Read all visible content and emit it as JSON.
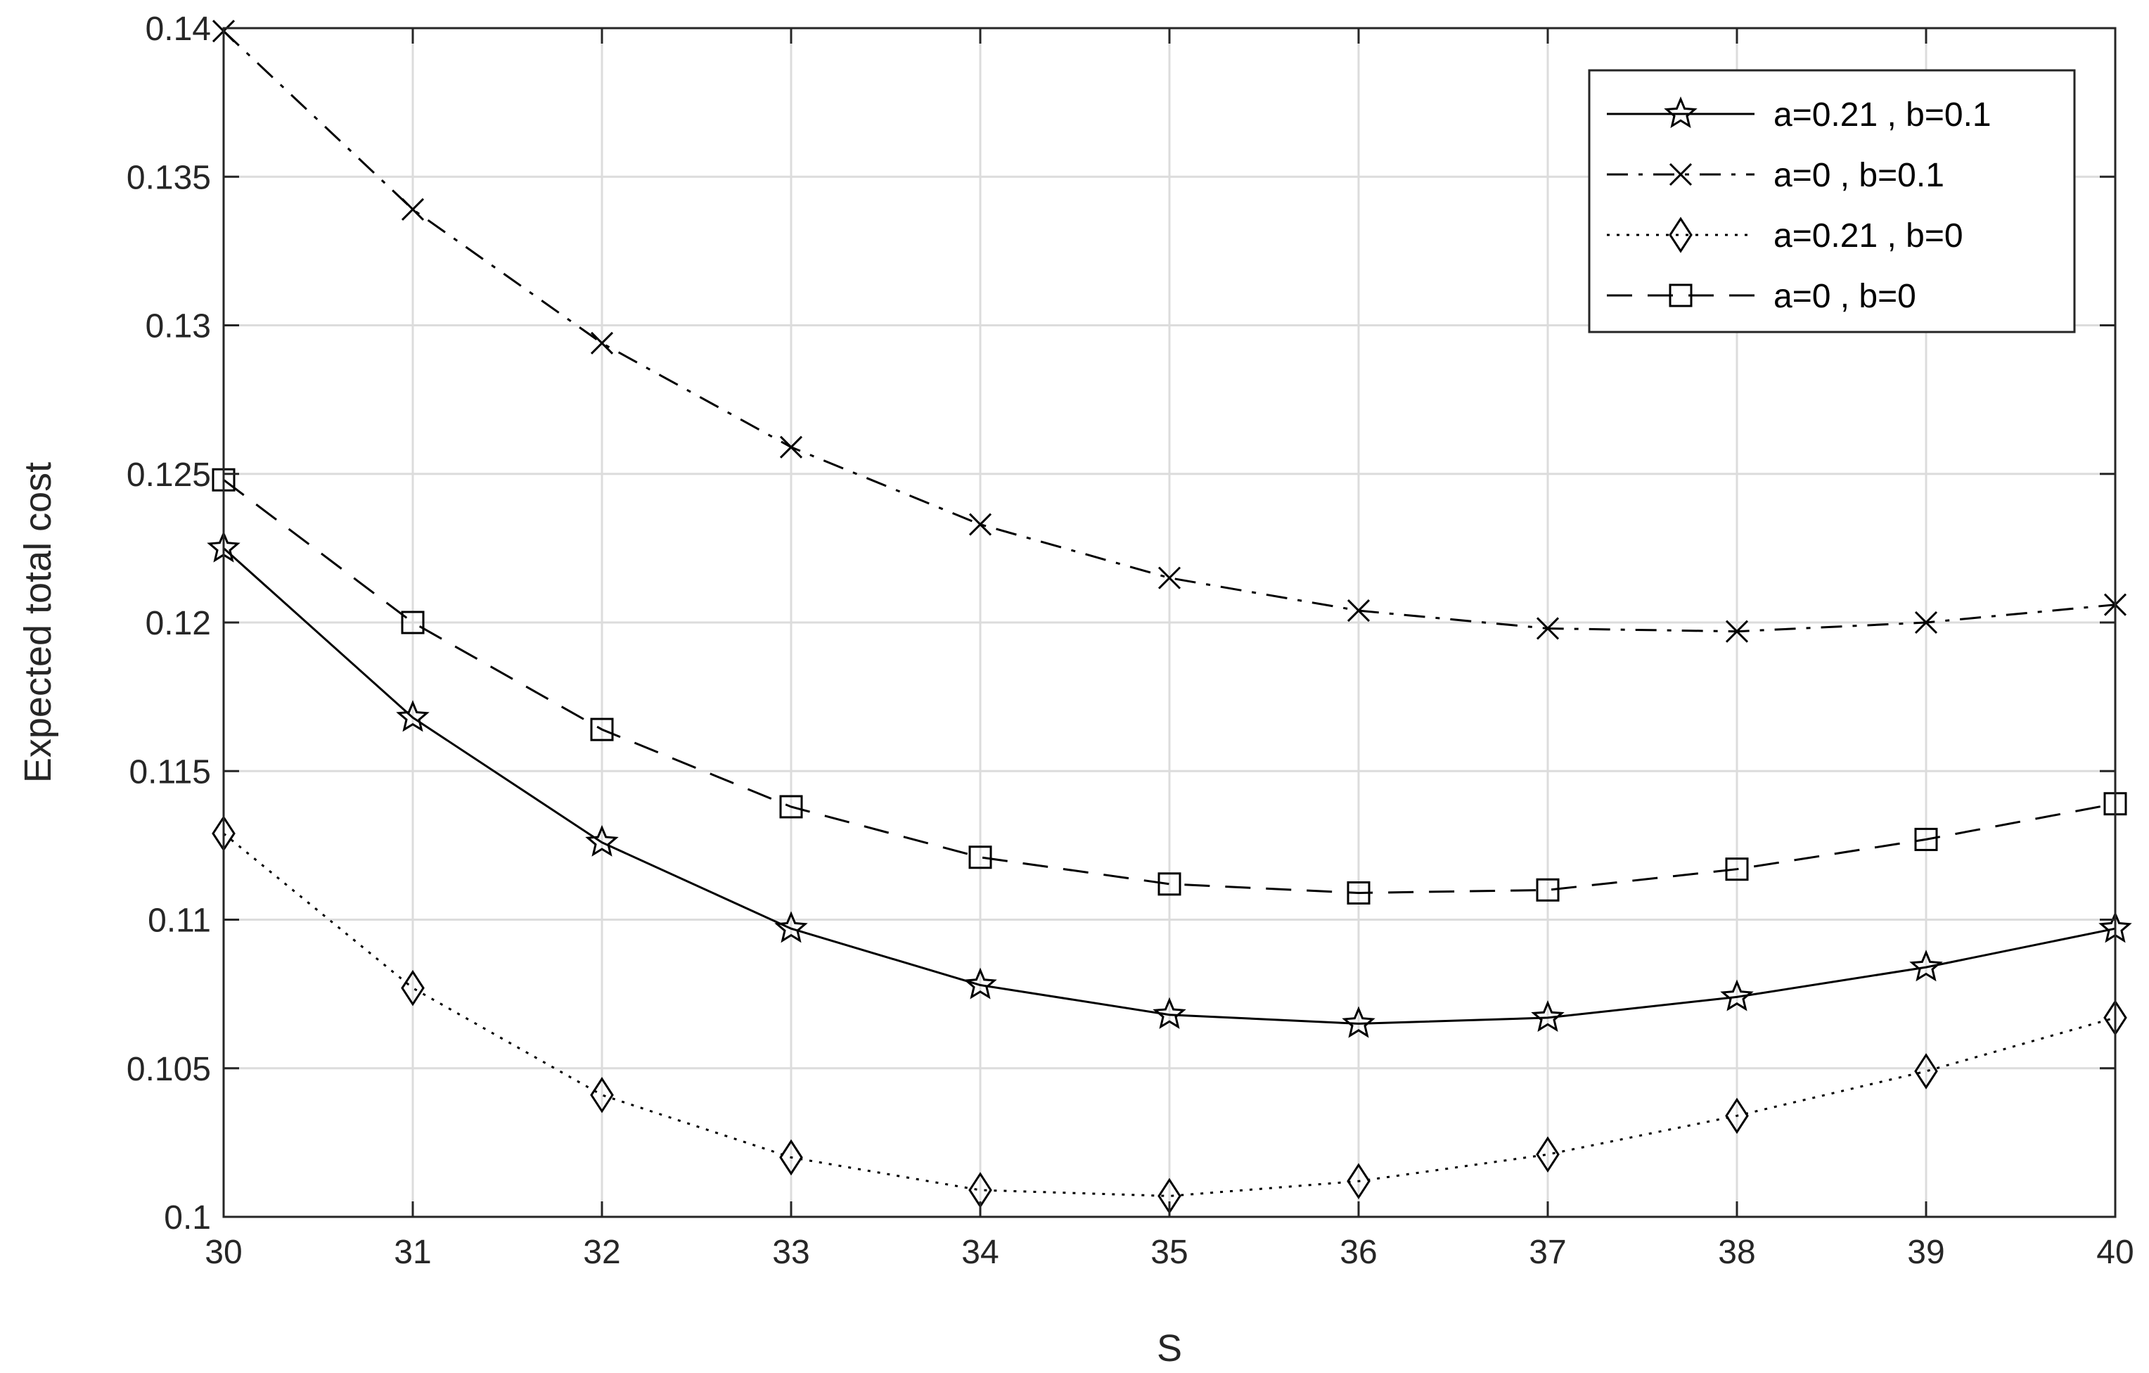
{
  "chart_data": {
    "type": "line",
    "xlabel": "S",
    "ylabel": "Expected total cost",
    "xlim": [
      30,
      40
    ],
    "ylim": [
      0.1,
      0.14
    ],
    "xticks": [
      "30",
      "31",
      "32",
      "33",
      "34",
      "35",
      "36",
      "37",
      "38",
      "39",
      "40"
    ],
    "yticks": [
      "0.1",
      "0.105",
      "0.11",
      "0.115",
      "0.12",
      "0.125",
      "0.13",
      "0.135",
      "0.14"
    ],
    "grid": true,
    "legend_position": "top-right",
    "x": [
      30,
      31,
      32,
      33,
      34,
      35,
      36,
      37,
      38,
      39,
      40
    ],
    "series": [
      {
        "name": "a=0.21 , b=0.1",
        "marker": "star",
        "line": "solid",
        "values": [
          0.1225,
          0.1168,
          0.1126,
          0.1097,
          0.1078,
          0.1068,
          0.1065,
          0.1067,
          0.1074,
          0.1084,
          0.1097
        ]
      },
      {
        "name": "a=0 , b=0.1",
        "marker": "x",
        "line": "dashdot",
        "values": [
          0.1399,
          0.1339,
          0.1294,
          0.1259,
          0.1233,
          0.1215,
          0.1204,
          0.1198,
          0.1197,
          0.12,
          0.1206
        ]
      },
      {
        "name": "a=0.21 , b=0",
        "marker": "diamond",
        "line": "dotted",
        "values": [
          0.1129,
          0.1077,
          0.1041,
          0.102,
          0.1009,
          0.1007,
          0.1012,
          0.1021,
          0.1034,
          0.1049,
          0.1067
        ]
      },
      {
        "name": "a=0 , b=0",
        "marker": "square",
        "line": "dashed",
        "values": [
          0.1248,
          0.12,
          0.1164,
          0.1138,
          0.1121,
          0.1112,
          0.1109,
          0.111,
          0.1117,
          0.1127,
          0.1139
        ]
      }
    ],
    "colors": {
      "line": "#000000",
      "grid": "#dcdcdc",
      "axis": "#262626"
    }
  }
}
